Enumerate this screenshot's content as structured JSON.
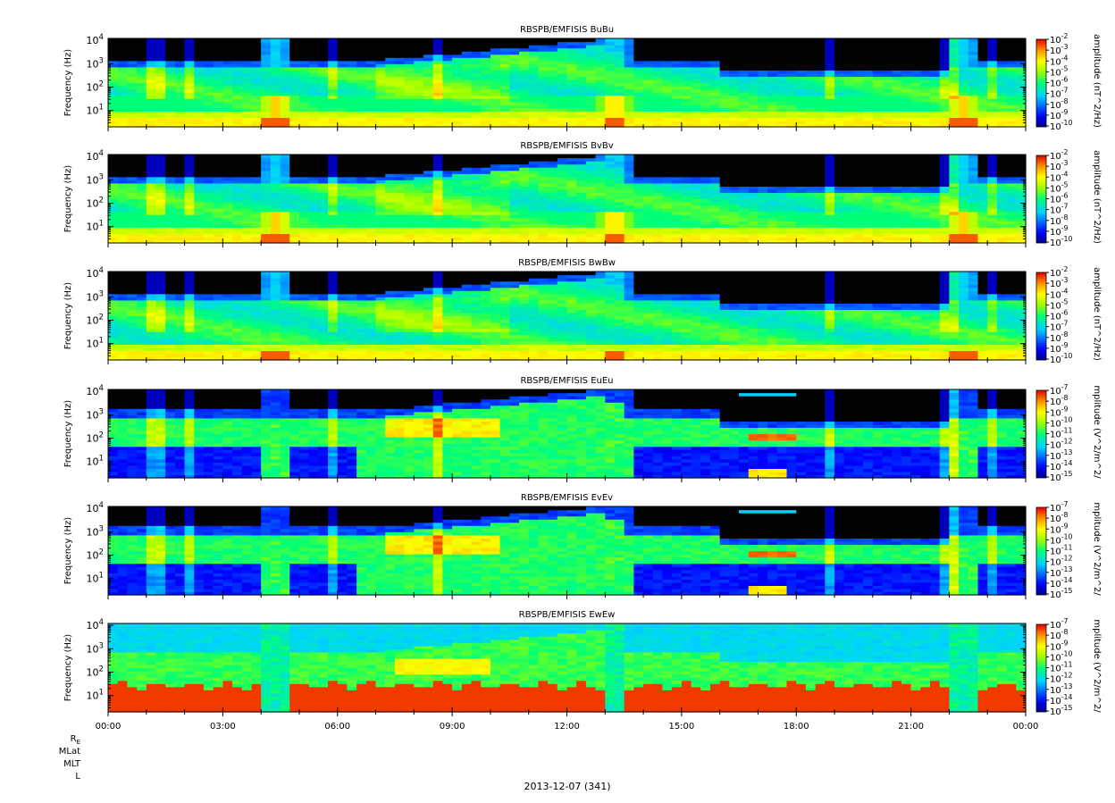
{
  "page": {
    "date_label": "2013-12-07 (341)",
    "ephemeris_labels": [
      "R_E",
      "MLat",
      "MLT",
      "L"
    ]
  },
  "chart_data": [
    {
      "type": "heatmap",
      "title": "RBSPB/EMFISIS  BuBu",
      "ylabel": "Frequency (Hz)",
      "yscale": "log",
      "ylim": [
        2,
        12000
      ],
      "yticks": [
        "10^1",
        "10^2",
        "10^3",
        "10^4"
      ],
      "xlim": [
        "00:00",
        "24:00"
      ],
      "colorbar": {
        "label": "amplitude (nT^2/Hz)",
        "scale": "log",
        "range": [
          1e-10,
          0.01
        ],
        "ticks": [
          "10^-2",
          "10^-3",
          "10^-4",
          "10^-5",
          "10^-6",
          "10^-7",
          "10^-8",
          "10^-9",
          "10^-10"
        ]
      }
    },
    {
      "type": "heatmap",
      "title": "RBSPB/EMFISIS  BvBv",
      "ylabel": "Frequency (Hz)",
      "yscale": "log",
      "ylim": [
        2,
        12000
      ],
      "yticks": [
        "10^1",
        "10^2",
        "10^3",
        "10^4"
      ],
      "xlim": [
        "00:00",
        "24:00"
      ],
      "colorbar": {
        "label": "amplitude (nT^2/Hz)",
        "scale": "log",
        "range": [
          1e-10,
          0.01
        ],
        "ticks": [
          "10^-2",
          "10^-3",
          "10^-4",
          "10^-5",
          "10^-6",
          "10^-7",
          "10^-8",
          "10^-9",
          "10^-10"
        ]
      }
    },
    {
      "type": "heatmap",
      "title": "RBSPB/EMFISIS  BwBw",
      "ylabel": "Frequency (Hz)",
      "yscale": "log",
      "ylim": [
        2,
        12000
      ],
      "yticks": [
        "10^1",
        "10^2",
        "10^3",
        "10^4"
      ],
      "xlim": [
        "00:00",
        "24:00"
      ],
      "colorbar": {
        "label": "amplitude (nT^2/Hz)",
        "scale": "log",
        "range": [
          1e-10,
          0.01
        ],
        "ticks": [
          "10^-2",
          "10^-3",
          "10^-4",
          "10^-5",
          "10^-6",
          "10^-7",
          "10^-8",
          "10^-9",
          "10^-10"
        ]
      }
    },
    {
      "type": "heatmap",
      "title": "RBSPB/EMFISIS  EuEu",
      "ylabel": "Frequency (Hz)",
      "yscale": "log",
      "ylim": [
        2,
        12000
      ],
      "yticks": [
        "10^1",
        "10^2",
        "10^3",
        "10^4"
      ],
      "xlim": [
        "00:00",
        "24:00"
      ],
      "colorbar": {
        "label": "mplitude (V^2/m^2/",
        "scale": "log",
        "range": [
          1e-15,
          1e-07
        ],
        "ticks": [
          "10^-7",
          "10^-8",
          "10^-9",
          "10^-10",
          "10^-11",
          "10^-12",
          "10^-13",
          "10^-14",
          "10^-15"
        ]
      }
    },
    {
      "type": "heatmap",
      "title": "RBSPB/EMFISIS  EvEv",
      "ylabel": "Frequency (Hz)",
      "yscale": "log",
      "ylim": [
        2,
        12000
      ],
      "yticks": [
        "10^1",
        "10^2",
        "10^3",
        "10^4"
      ],
      "xlim": [
        "00:00",
        "24:00"
      ],
      "colorbar": {
        "label": "mplitude (V^2/m^2/",
        "scale": "log",
        "range": [
          1e-15,
          1e-07
        ],
        "ticks": [
          "10^-7",
          "10^-8",
          "10^-9",
          "10^-10",
          "10^-11",
          "10^-12",
          "10^-13",
          "10^-14",
          "10^-15"
        ]
      }
    },
    {
      "type": "heatmap",
      "title": "RBSPB/EMFISIS  EwEw",
      "ylabel": "Frequency (Hz)",
      "yscale": "log",
      "ylim": [
        2,
        12000
      ],
      "yticks": [
        "10^1",
        "10^2",
        "10^3",
        "10^4"
      ],
      "xlim": [
        "00:00",
        "24:00"
      ],
      "xticks": [
        "00:00",
        "03:00",
        "06:00",
        "09:00",
        "12:00",
        "15:00",
        "18:00",
        "21:00",
        "00:00"
      ],
      "colorbar": {
        "label": "mplitude (V^2/m^2/",
        "scale": "log",
        "range": [
          1e-15,
          1e-07
        ],
        "ticks": [
          "10^-7",
          "10^-8",
          "10^-9",
          "10^-10",
          "10^-11",
          "10^-12",
          "10^-13",
          "10^-14",
          "10^-15"
        ]
      }
    }
  ]
}
